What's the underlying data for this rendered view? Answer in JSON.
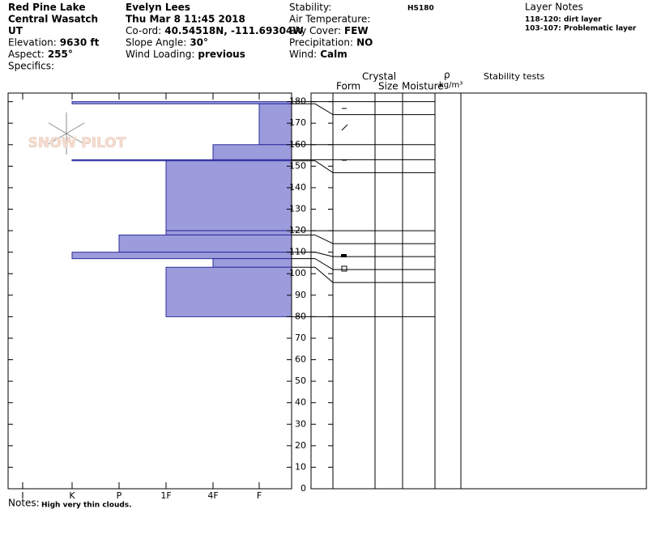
{
  "header": {
    "columns": [
      [
        {
          "value": "Red Pine Lake"
        },
        {
          "value": "Central Wasatch"
        },
        {
          "value": "UT"
        },
        {
          "label": "Elevation:",
          "value": "9630 ft"
        },
        {
          "label": "Aspect:",
          "value": "255°"
        },
        {
          "label": "Specifics:"
        }
      ],
      [
        {
          "value": "Evelyn Lees"
        },
        {
          "value": "Thu Mar 8 11:45 2018"
        },
        {
          "label": "Co-ord:",
          "value": "40.54518N, -111.69304W"
        },
        {
          "label": "Slope Angle:",
          "value": "30°"
        },
        {
          "label": "Wind Loading:",
          "value": "previous"
        }
      ],
      [
        {
          "label": "Stability:"
        },
        {
          "label": "Air Temperature:"
        },
        {
          "label": "Sky Cover:",
          "value": "FEW"
        },
        {
          "label": "Precipitation:",
          "value": "NO"
        },
        {
          "label": "Wind:",
          "value": "Calm"
        }
      ]
    ],
    "hs": "HS180",
    "layer_notes_title": "Layer Notes",
    "layer_notes": [
      "118-120: dirt layer",
      "103-107: Problematic layer"
    ]
  },
  "logo": "SNOW PILOT",
  "chart_data": {
    "type": "snow-profile",
    "hardness_scale": [
      "I",
      "K",
      "P",
      "1F",
      "4F",
      "F"
    ],
    "ylim": [
      0,
      184
    ],
    "yticks": [
      0,
      10,
      20,
      30,
      40,
      50,
      60,
      70,
      80,
      90,
      100,
      110,
      120,
      130,
      140,
      150,
      160,
      170,
      180
    ],
    "fill": "#9c9cdc",
    "stroke": "#2b2b9c",
    "layers": [
      {
        "top": 180,
        "bottom": 179,
        "hardness": "K"
      },
      {
        "top": 179,
        "bottom": 160,
        "hardness": "F"
      },
      {
        "top": 160,
        "bottom": 153,
        "hardness": "4F"
      },
      {
        "top": 153,
        "bottom": 152.5,
        "hardness": "K"
      },
      {
        "top": 152.5,
        "bottom": 120,
        "hardness": "1F"
      },
      {
        "top": 120,
        "bottom": 118,
        "hardness": "1F"
      },
      {
        "top": 118,
        "bottom": 110,
        "hardness": "P"
      },
      {
        "top": 110,
        "bottom": 107,
        "hardness": "K"
      },
      {
        "top": 107,
        "bottom": 103,
        "hardness": "4F"
      },
      {
        "top": 103,
        "bottom": 80,
        "hardness": "1F"
      }
    ],
    "columns": {
      "crystal": "Crystal",
      "form": "Form",
      "size": "Size",
      "moisture": "Moisture",
      "rho": "ρ",
      "density_unit": "kg/m³",
      "stability": "Stability tests"
    }
  },
  "notes": {
    "label": "Notes:",
    "text": "High very thin clouds."
  }
}
